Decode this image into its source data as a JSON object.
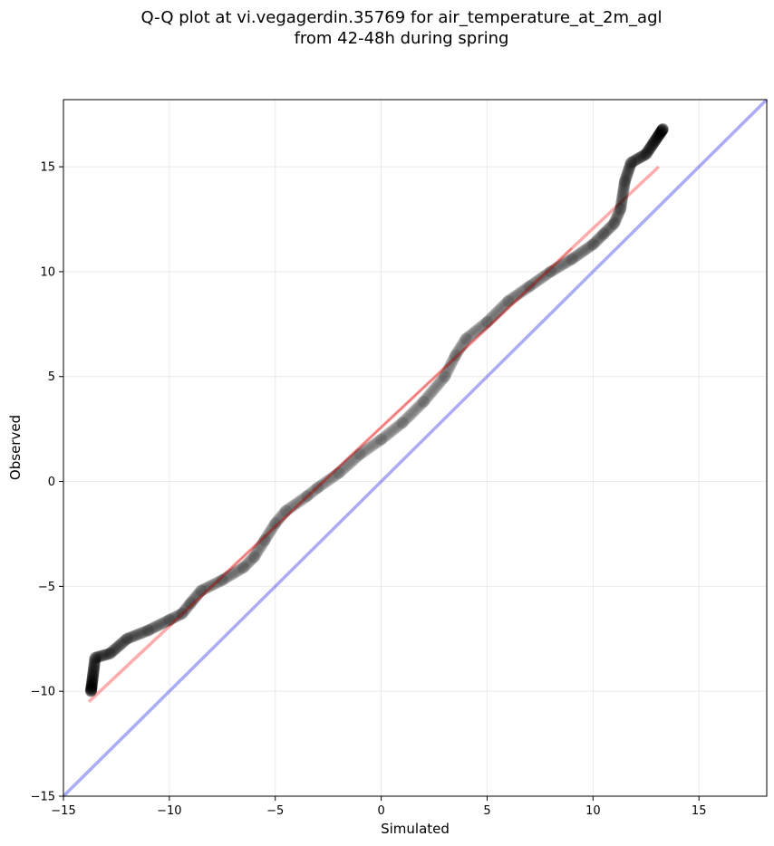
{
  "chart_data": {
    "type": "scatter",
    "title": "Q-Q plot at vi.vegagerdin.35769 for air_temperature_at_2m_agl",
    "subtitle": "from 42-48h during spring",
    "xlabel": "Simulated",
    "ylabel": "Observed",
    "xlim": [
      -15,
      18.2
    ],
    "ylim": [
      -15,
      18.2
    ],
    "xticks": [
      "−15",
      "−10",
      "−5",
      "0",
      "5",
      "10",
      "15"
    ],
    "yticks": [
      "−15",
      "−10",
      "−5",
      "0",
      "5",
      "10",
      "15"
    ],
    "grid": true,
    "point_color": "#000000",
    "fit_line_color": "#ff6666",
    "identity_line_color": "#6666ee",
    "fit_line": {
      "x": [
        -13.8,
        13.1
      ],
      "y": [
        -10.5,
        15.0
      ]
    },
    "identity_line": {
      "x": [
        -15,
        18.2
      ],
      "y": [
        -15,
        18.2
      ]
    },
    "quantile_path": [
      [
        -13.7,
        -10.0
      ],
      [
        -13.5,
        -8.4
      ],
      [
        -12.8,
        -8.2
      ],
      [
        -12.0,
        -7.5
      ],
      [
        -11.0,
        -7.1
      ],
      [
        -10.0,
        -6.6
      ],
      [
        -9.4,
        -6.3
      ],
      [
        -9.0,
        -5.8
      ],
      [
        -8.5,
        -5.2
      ],
      [
        -7.5,
        -4.7
      ],
      [
        -6.5,
        -4.1
      ],
      [
        -6.0,
        -3.6
      ],
      [
        -5.5,
        -2.8
      ],
      [
        -5.0,
        -2.0
      ],
      [
        -4.5,
        -1.4
      ],
      [
        -3.5,
        -0.7
      ],
      [
        -3.0,
        -0.3
      ],
      [
        -2.0,
        0.4
      ],
      [
        -1.0,
        1.3
      ],
      [
        0.0,
        2.0
      ],
      [
        1.0,
        2.8
      ],
      [
        2.0,
        3.8
      ],
      [
        3.0,
        5.0
      ],
      [
        3.5,
        6.0
      ],
      [
        4.0,
        6.8
      ],
      [
        5.0,
        7.6
      ],
      [
        6.0,
        8.6
      ],
      [
        7.0,
        9.3
      ],
      [
        8.0,
        10.0
      ],
      [
        9.0,
        10.6
      ],
      [
        10.0,
        11.3
      ],
      [
        10.5,
        11.8
      ],
      [
        11.0,
        12.3
      ],
      [
        11.3,
        13.0
      ],
      [
        11.5,
        14.3
      ],
      [
        11.8,
        15.2
      ],
      [
        12.5,
        15.6
      ],
      [
        13.3,
        16.8
      ]
    ]
  }
}
